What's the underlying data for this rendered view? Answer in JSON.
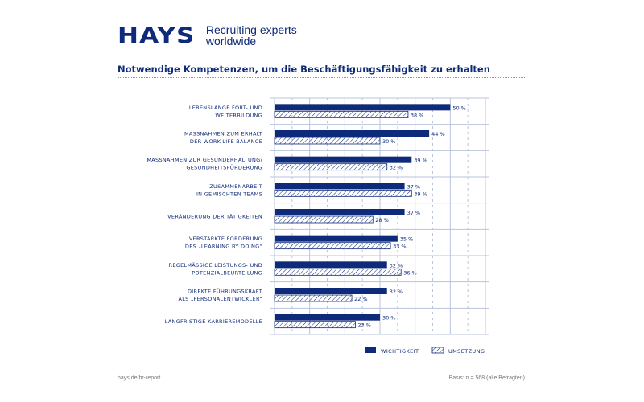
{
  "header": {
    "logo": "HAYS",
    "tagline_line1": "Recruiting experts",
    "tagline_line2": "worldwide"
  },
  "colors": {
    "primary": "#0e2a7a",
    "grid": "#b8c3dd",
    "text": "#0e2a7a"
  },
  "chart_data": {
    "type": "bar",
    "orientation": "horizontal",
    "title": "Notwendige Kompetenzen, um die Beschäftigungsfähigkeit zu erhalten",
    "xlabel": "",
    "ylabel": "",
    "xlim": [
      0,
      60
    ],
    "grid": true,
    "legend_position": "bottom-right",
    "value_suffix": " %",
    "categories": [
      [
        "LEBENSLANGE FORT- UND",
        "WEITERBILDUNG"
      ],
      [
        "MASSNAHMEN ZUM ERHALT",
        "DER WORK-LIFE-BALANCE"
      ],
      [
        "MASSNAHMEN ZUR GESUNDERHALTUNG/",
        "GESUNDHEITSFÖRDERUNG"
      ],
      [
        "ZUSAMMENARBEIT",
        "IN GEMISCHTEN TEAMS"
      ],
      [
        "VERÄNDERUNG DER TÄTIGKEITEN"
      ],
      [
        "VERSTÄRKTE FÖRDERUNG",
        "DES „LEARNING BY DOING“"
      ],
      [
        "REGELMÄSSIGE LEISTUNGS- UND",
        "POTENZIALBEURTEILUNG"
      ],
      [
        "DIREKTE FÜHRUNGSKRAFT",
        "ALS „PERSONALENTWICKLER“"
      ],
      [
        "LANGFRISTIGE KARRIEREMODELLE"
      ]
    ],
    "series": [
      {
        "name": "WICHTIGKEIT",
        "style": "solid",
        "values": [
          50,
          44,
          39,
          37,
          37,
          35,
          32,
          32,
          30
        ]
      },
      {
        "name": "UMSETZUNG",
        "style": "hatched",
        "values": [
          38,
          30,
          32,
          39,
          28,
          33,
          36,
          22,
          23
        ]
      }
    ]
  },
  "footer": {
    "source": "hays.de/hr-report",
    "basis": "Basis: n = 568 (alle Befragten)"
  }
}
